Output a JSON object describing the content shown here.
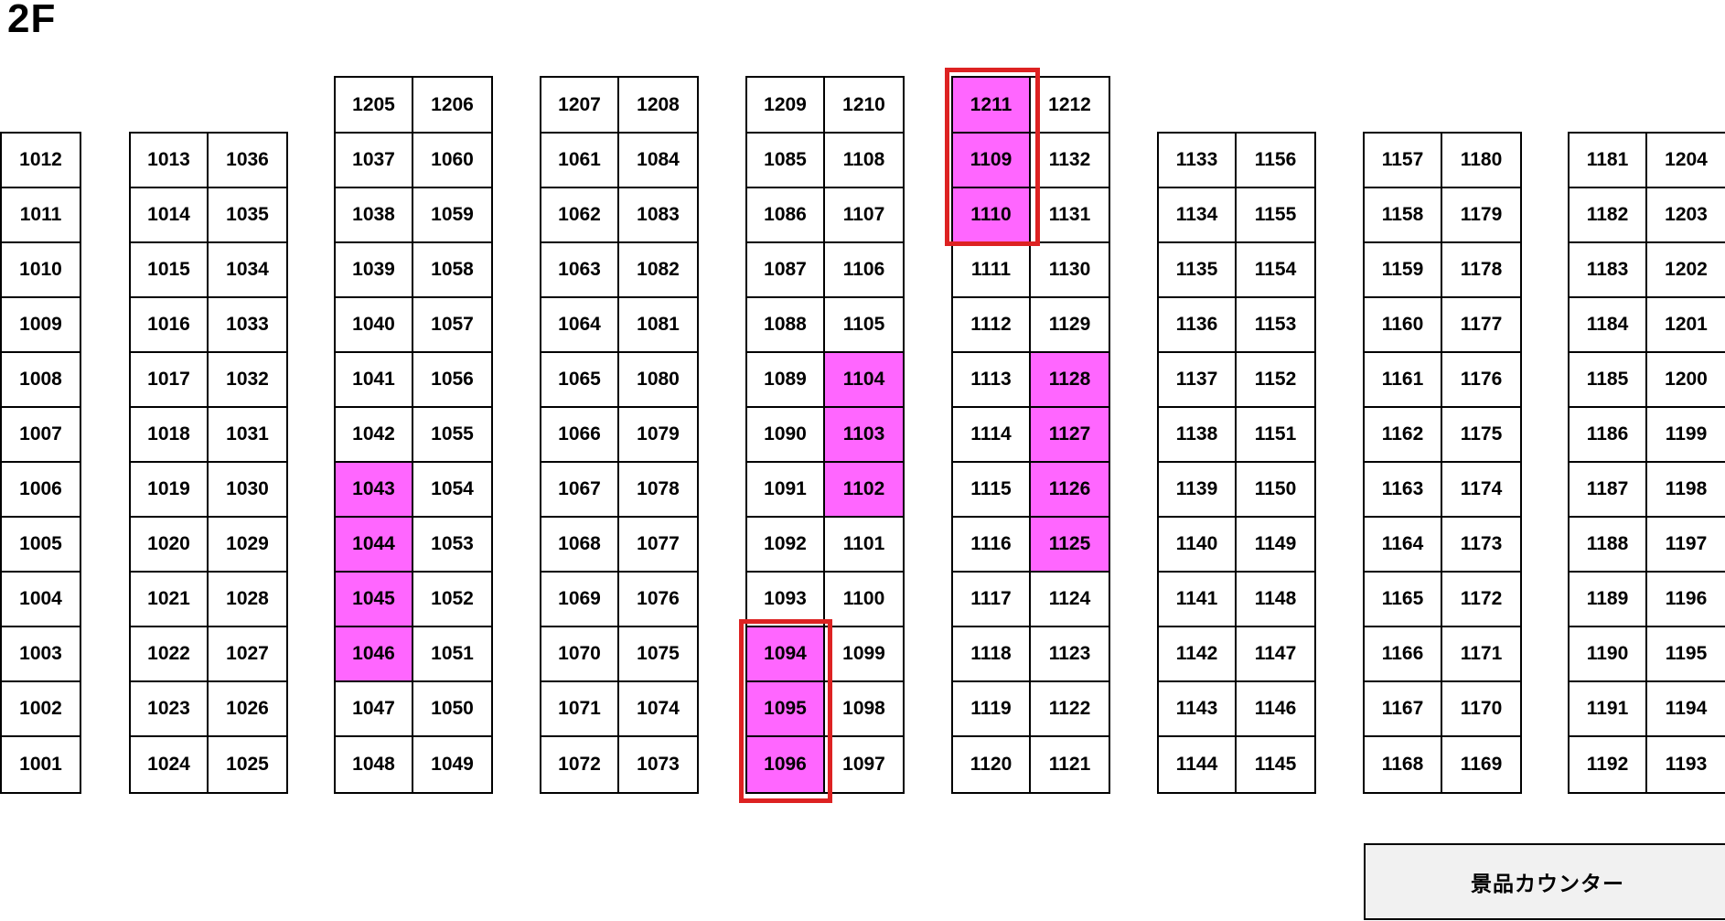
{
  "floor_label": "2F",
  "counter": {
    "label": "景品カウンター"
  },
  "colors": {
    "highlight_fill": "#ff66ff",
    "attention_outline": "#dd2222",
    "counter_bg": "#f1f1f1"
  },
  "highlighted_seats": [
    "1043",
    "1044",
    "1045",
    "1046",
    "1094",
    "1095",
    "1096",
    "1102",
    "1103",
    "1104",
    "1109",
    "1110",
    "1125",
    "1126",
    "1127",
    "1128",
    "1211"
  ],
  "red_outlined_groups": [
    {
      "seats": [
        "1211",
        "1109",
        "1110"
      ]
    },
    {
      "seats": [
        "1094",
        "1095",
        "1096"
      ]
    }
  ],
  "blocks": [
    {
      "name": "seat-block-1",
      "columns": 1,
      "top_row": null,
      "rows": [
        [
          "1012"
        ],
        [
          "1011"
        ],
        [
          "1010"
        ],
        [
          "1009"
        ],
        [
          "1008"
        ],
        [
          "1007"
        ],
        [
          "1006"
        ],
        [
          "1005"
        ],
        [
          "1004"
        ],
        [
          "1003"
        ],
        [
          "1002"
        ],
        [
          "1001"
        ]
      ]
    },
    {
      "name": "seat-block-2",
      "columns": 2,
      "top_row": null,
      "rows": [
        [
          "1013",
          "1036"
        ],
        [
          "1014",
          "1035"
        ],
        [
          "1015",
          "1034"
        ],
        [
          "1016",
          "1033"
        ],
        [
          "1017",
          "1032"
        ],
        [
          "1018",
          "1031"
        ],
        [
          "1019",
          "1030"
        ],
        [
          "1020",
          "1029"
        ],
        [
          "1021",
          "1028"
        ],
        [
          "1022",
          "1027"
        ],
        [
          "1023",
          "1026"
        ],
        [
          "1024",
          "1025"
        ]
      ]
    },
    {
      "name": "seat-block-3",
      "columns": 2,
      "top_row": [
        "1205",
        "1206"
      ],
      "rows": [
        [
          "1037",
          "1060"
        ],
        [
          "1038",
          "1059"
        ],
        [
          "1039",
          "1058"
        ],
        [
          "1040",
          "1057"
        ],
        [
          "1041",
          "1056"
        ],
        [
          "1042",
          "1055"
        ],
        [
          "1043",
          "1054"
        ],
        [
          "1044",
          "1053"
        ],
        [
          "1045",
          "1052"
        ],
        [
          "1046",
          "1051"
        ],
        [
          "1047",
          "1050"
        ],
        [
          "1048",
          "1049"
        ]
      ]
    },
    {
      "name": "seat-block-4",
      "columns": 2,
      "top_row": [
        "1207",
        "1208"
      ],
      "rows": [
        [
          "1061",
          "1084"
        ],
        [
          "1062",
          "1083"
        ],
        [
          "1063",
          "1082"
        ],
        [
          "1064",
          "1081"
        ],
        [
          "1065",
          "1080"
        ],
        [
          "1066",
          "1079"
        ],
        [
          "1067",
          "1078"
        ],
        [
          "1068",
          "1077"
        ],
        [
          "1069",
          "1076"
        ],
        [
          "1070",
          "1075"
        ],
        [
          "1071",
          "1074"
        ],
        [
          "1072",
          "1073"
        ]
      ]
    },
    {
      "name": "seat-block-5",
      "columns": 2,
      "top_row": [
        "1209",
        "1210"
      ],
      "rows": [
        [
          "1085",
          "1108"
        ],
        [
          "1086",
          "1107"
        ],
        [
          "1087",
          "1106"
        ],
        [
          "1088",
          "1105"
        ],
        [
          "1089",
          "1104"
        ],
        [
          "1090",
          "1103"
        ],
        [
          "1091",
          "1102"
        ],
        [
          "1092",
          "1101"
        ],
        [
          "1093",
          "1100"
        ],
        [
          "1094",
          "1099"
        ],
        [
          "1095",
          "1098"
        ],
        [
          "1096",
          "1097"
        ]
      ]
    },
    {
      "name": "seat-block-6",
      "columns": 2,
      "top_row": [
        "1211",
        "1212"
      ],
      "rows": [
        [
          "1109",
          "1132"
        ],
        [
          "1110",
          "1131"
        ],
        [
          "1111",
          "1130"
        ],
        [
          "1112",
          "1129"
        ],
        [
          "1113",
          "1128"
        ],
        [
          "1114",
          "1127"
        ],
        [
          "1115",
          "1126"
        ],
        [
          "1116",
          "1125"
        ],
        [
          "1117",
          "1124"
        ],
        [
          "1118",
          "1123"
        ],
        [
          "1119",
          "1122"
        ],
        [
          "1120",
          "1121"
        ]
      ]
    },
    {
      "name": "seat-block-7",
      "columns": 2,
      "top_row": null,
      "rows": [
        [
          "1133",
          "1156"
        ],
        [
          "1134",
          "1155"
        ],
        [
          "1135",
          "1154"
        ],
        [
          "1136",
          "1153"
        ],
        [
          "1137",
          "1152"
        ],
        [
          "1138",
          "1151"
        ],
        [
          "1139",
          "1150"
        ],
        [
          "1140",
          "1149"
        ],
        [
          "1141",
          "1148"
        ],
        [
          "1142",
          "1147"
        ],
        [
          "1143",
          "1146"
        ],
        [
          "1144",
          "1145"
        ]
      ]
    },
    {
      "name": "seat-block-8",
      "columns": 2,
      "top_row": null,
      "rows": [
        [
          "1157",
          "1180"
        ],
        [
          "1158",
          "1179"
        ],
        [
          "1159",
          "1178"
        ],
        [
          "1160",
          "1177"
        ],
        [
          "1161",
          "1176"
        ],
        [
          "1162",
          "1175"
        ],
        [
          "1163",
          "1174"
        ],
        [
          "1164",
          "1173"
        ],
        [
          "1165",
          "1172"
        ],
        [
          "1166",
          "1171"
        ],
        [
          "1167",
          "1170"
        ],
        [
          "1168",
          "1169"
        ]
      ]
    },
    {
      "name": "seat-block-9",
      "columns": 2,
      "top_row": null,
      "rows": [
        [
          "1181",
          "1204"
        ],
        [
          "1182",
          "1203"
        ],
        [
          "1183",
          "1202"
        ],
        [
          "1184",
          "1201"
        ],
        [
          "1185",
          "1200"
        ],
        [
          "1186",
          "1199"
        ],
        [
          "1187",
          "1198"
        ],
        [
          "1188",
          "1197"
        ],
        [
          "1189",
          "1196"
        ],
        [
          "1190",
          "1195"
        ],
        [
          "1191",
          "1194"
        ],
        [
          "1192",
          "1193"
        ]
      ]
    }
  ]
}
